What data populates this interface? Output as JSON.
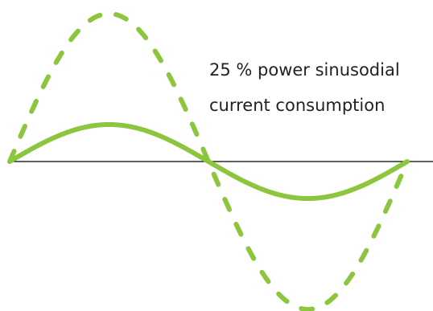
{
  "annotation": {
    "line1": "25 % power sinusodial",
    "line2": "current consumption"
  },
  "colors": {
    "wave": "#8cc63f",
    "axis": "#000000",
    "text": "#222222",
    "background": "#ffffff"
  },
  "waves": [
    {
      "id": "solid-wave",
      "style": "solid",
      "relative_amplitude": 0.25
    },
    {
      "id": "dashed-wave",
      "style": "dashed",
      "relative_amplitude": 1.0
    }
  ]
}
